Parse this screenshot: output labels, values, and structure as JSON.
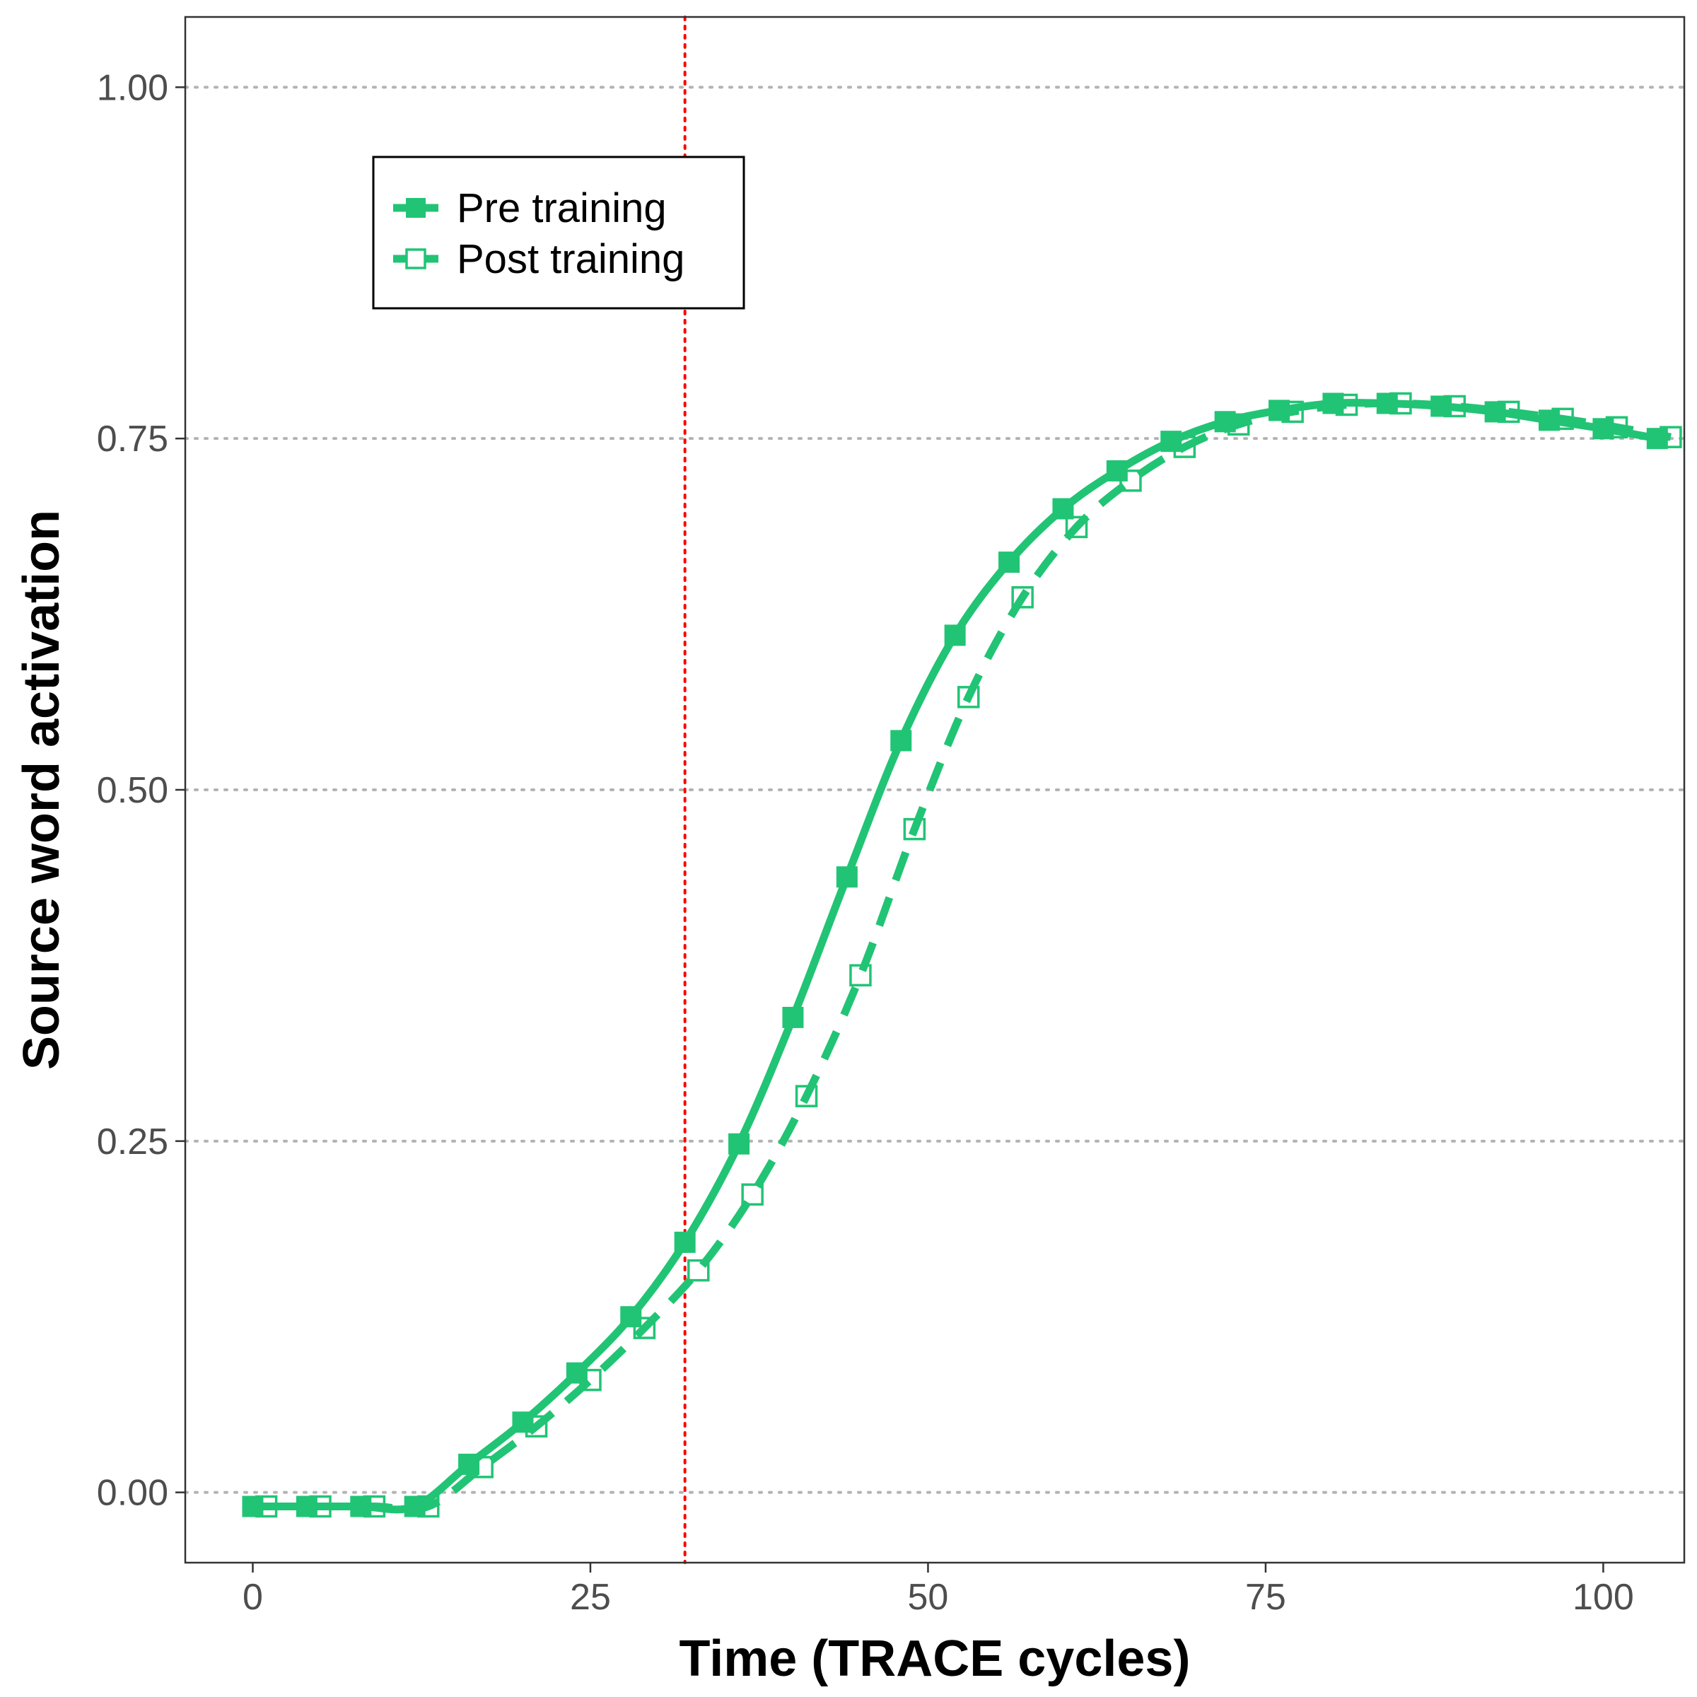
{
  "chart_data": {
    "type": "line",
    "xlabel": "Time (TRACE cycles)",
    "ylabel": "Source word activation",
    "xlim": [
      -5,
      106
    ],
    "ylim": [
      -0.05,
      1.05
    ],
    "x_ticks": [
      0,
      25,
      50,
      75,
      100
    ],
    "x_tick_labels": [
      "0",
      "25",
      "50",
      "75",
      "100"
    ],
    "y_ticks": [
      0,
      0.25,
      0.5,
      0.75,
      1.0
    ],
    "y_tick_labels": [
      "0.00",
      "0.25",
      "0.50",
      "0.75",
      "1.00"
    ],
    "y_grid": "dotted",
    "x_grid": false,
    "reference_line": {
      "x": 32,
      "color": "#ff0000",
      "style": "dotted"
    },
    "legend_position": "top-left",
    "series": [
      {
        "name": "Pre training",
        "color": "#21c474",
        "line_style": "solid",
        "marker": "filled-square",
        "x": [
          0,
          4,
          8,
          12,
          16,
          20,
          24,
          28,
          32,
          36,
          40,
          44,
          48,
          52,
          56,
          60,
          64,
          68,
          72,
          76,
          80,
          84,
          88,
          92,
          96,
          100,
          104
        ],
        "y": [
          -0.01,
          -0.01,
          -0.01,
          -0.01,
          0.02,
          0.05,
          0.085,
          0.125,
          0.178,
          0.248,
          0.338,
          0.438,
          0.535,
          0.61,
          0.662,
          0.7,
          0.727,
          0.748,
          0.762,
          0.77,
          0.775,
          0.775,
          0.773,
          0.769,
          0.763,
          0.757,
          0.75
        ],
        "markers_x": [
          0,
          4,
          8,
          12,
          16,
          20,
          24,
          28,
          32,
          36,
          40,
          44,
          48,
          52,
          56,
          60,
          64,
          68,
          72,
          76,
          80,
          84,
          88,
          92,
          96,
          100,
          104
        ],
        "markers_y": [
          -0.01,
          -0.01,
          -0.01,
          -0.01,
          0.02,
          0.05,
          0.085,
          0.125,
          0.178,
          0.248,
          0.338,
          0.438,
          0.535,
          0.61,
          0.662,
          0.7,
          0.727,
          0.748,
          0.762,
          0.77,
          0.775,
          0.775,
          0.773,
          0.769,
          0.763,
          0.757,
          0.75
        ]
      },
      {
        "name": "Post training",
        "color": "#21c474",
        "line_style": "dashed",
        "marker": "open-square",
        "x": [
          1,
          5,
          9,
          13,
          17,
          21,
          25,
          29,
          33,
          37,
          41,
          45,
          49,
          53,
          57,
          61,
          65,
          69,
          73,
          77,
          81,
          85,
          89,
          93,
          97,
          101,
          105
        ],
        "y": [
          -0.01,
          -0.01,
          -0.01,
          -0.01,
          0.018,
          0.047,
          0.08,
          0.117,
          0.158,
          0.212,
          0.282,
          0.368,
          0.472,
          0.566,
          0.637,
          0.687,
          0.72,
          0.744,
          0.76,
          0.769,
          0.774,
          0.775,
          0.773,
          0.769,
          0.764,
          0.758,
          0.751
        ],
        "markers_x": [
          1,
          5,
          9,
          13,
          17,
          21,
          25,
          29,
          33,
          37,
          41,
          45,
          49,
          53,
          57,
          61,
          65,
          69,
          73,
          77,
          81,
          85,
          89,
          93,
          97,
          101,
          105
        ],
        "markers_y": [
          -0.01,
          -0.01,
          -0.01,
          -0.01,
          0.018,
          0.047,
          0.08,
          0.117,
          0.158,
          0.212,
          0.282,
          0.368,
          0.472,
          0.566,
          0.637,
          0.687,
          0.72,
          0.744,
          0.76,
          0.769,
          0.774,
          0.775,
          0.773,
          0.769,
          0.764,
          0.758,
          0.751
        ]
      }
    ]
  }
}
